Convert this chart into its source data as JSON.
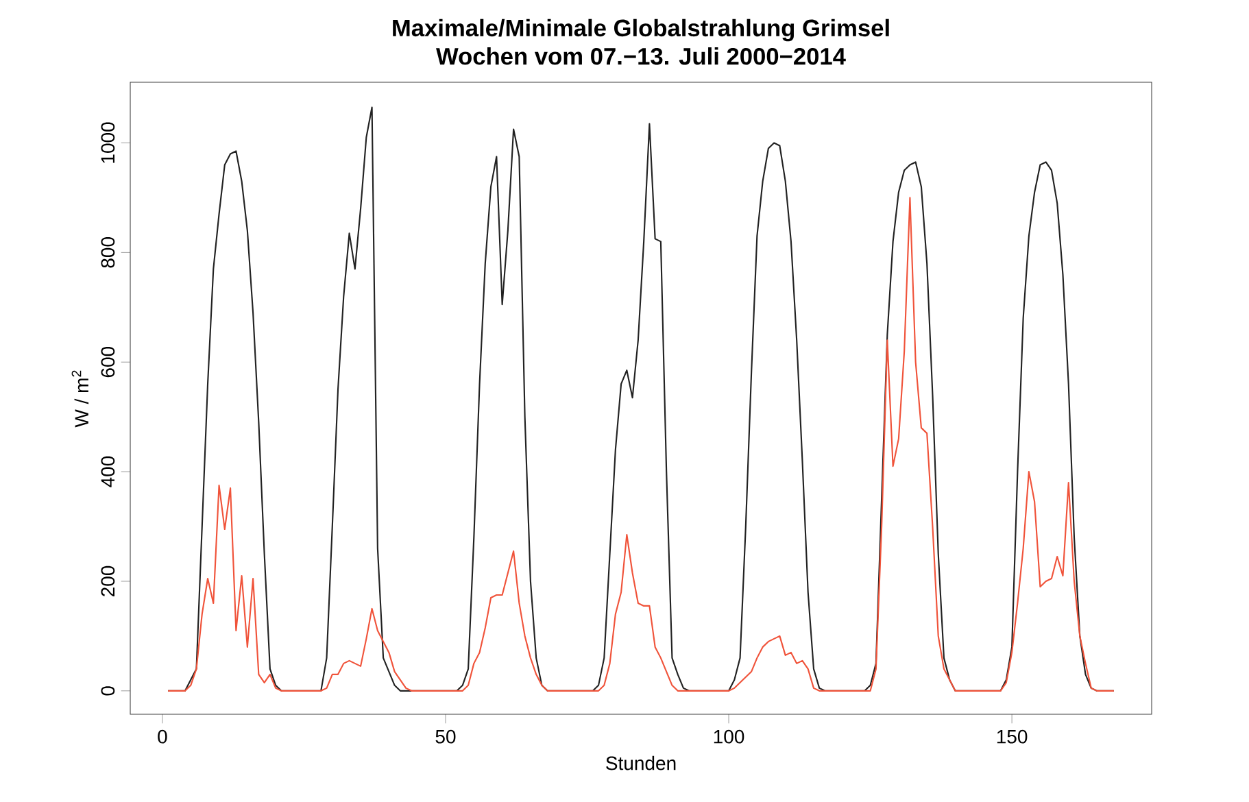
{
  "chart_data": {
    "type": "line",
    "title": "Maximale/Minimale Globalstrahlung Grimsel",
    "subtitle": "Wochen vom 07.−13. Juli 2000−2014",
    "xlabel": "Stunden",
    "ylabel": "W / m$^{2}$",
    "xlim": [
      -5.68,
      174.68
    ],
    "ylim": [
      -42.7,
      1110.7
    ],
    "xticks": [
      0,
      50,
      100,
      150
    ],
    "yticks": [
      0,
      200,
      400,
      600,
      800,
      1000
    ],
    "grid": false,
    "marker": "none",
    "line_style": "solid",
    "series": [
      {
        "color": "#222222",
        "x": [
          1,
          4,
          5,
          6,
          7,
          8,
          9,
          10,
          11,
          12,
          13,
          14,
          15,
          16,
          17,
          18,
          19,
          20,
          21,
          28,
          29,
          30,
          31,
          32,
          33,
          34,
          35,
          36,
          37,
          38,
          39,
          40,
          41,
          42,
          52,
          53,
          54,
          55,
          56,
          57,
          58,
          59,
          60,
          61,
          62,
          63,
          64,
          65,
          66,
          67,
          68,
          76,
          77,
          78,
          79,
          80,
          81,
          82,
          83,
          84,
          85,
          86,
          87,
          88,
          89,
          90,
          91,
          92,
          93,
          100,
          101,
          102,
          103,
          104,
          105,
          106,
          107,
          108,
          109,
          110,
          111,
          112,
          113,
          114,
          115,
          116,
          117,
          124,
          125,
          126,
          127,
          128,
          129,
          130,
          131,
          132,
          133,
          134,
          135,
          136,
          137,
          138,
          139,
          140,
          148,
          149,
          150,
          151,
          152,
          153,
          154,
          155,
          156,
          157,
          158,
          159,
          160,
          161,
          162,
          163,
          164,
          165,
          168
        ],
        "values": [
          0,
          0,
          20,
          40,
          300,
          560,
          770,
          870,
          960,
          980,
          985,
          930,
          840,
          690,
          490,
          250,
          40,
          10,
          0,
          0,
          60,
          300,
          550,
          720,
          835,
          770,
          880,
          1010,
          1065,
          260,
          60,
          35,
          10,
          0,
          0,
          10,
          40,
          280,
          560,
          780,
          920,
          975,
          705,
          840,
          1025,
          975,
          500,
          200,
          60,
          10,
          0,
          0,
          10,
          60,
          250,
          440,
          560,
          585,
          535,
          640,
          820,
          1035,
          825,
          820,
          400,
          60,
          30,
          5,
          0,
          0,
          20,
          60,
          300,
          580,
          830,
          930,
          990,
          1000,
          995,
          930,
          820,
          640,
          420,
          180,
          40,
          5,
          0,
          0,
          10,
          50,
          350,
          650,
          820,
          910,
          950,
          960,
          965,
          920,
          780,
          540,
          250,
          60,
          20,
          0,
          0,
          20,
          80,
          400,
          680,
          830,
          910,
          960,
          965,
          950,
          890,
          760,
          560,
          280,
          100,
          30,
          5,
          0,
          0
        ]
      },
      {
        "color": "#f0533a",
        "x": [
          1,
          4,
          5,
          6,
          7,
          8,
          9,
          10,
          11,
          12,
          13,
          14,
          15,
          16,
          17,
          18,
          19,
          20,
          21,
          28,
          29,
          30,
          31,
          32,
          33,
          34,
          35,
          36,
          37,
          38,
          39,
          40,
          41,
          42,
          43,
          44,
          53,
          54,
          55,
          56,
          57,
          58,
          59,
          60,
          61,
          62,
          63,
          64,
          65,
          66,
          67,
          68,
          77,
          78,
          79,
          80,
          81,
          82,
          83,
          84,
          85,
          86,
          87,
          88,
          89,
          90,
          91,
          100,
          101,
          102,
          103,
          104,
          105,
          106,
          107,
          108,
          109,
          110,
          111,
          112,
          113,
          114,
          115,
          116,
          125,
          126,
          127,
          128,
          129,
          130,
          131,
          132,
          133,
          134,
          135,
          136,
          137,
          138,
          139,
          140,
          148,
          149,
          150,
          151,
          152,
          153,
          154,
          155,
          156,
          157,
          158,
          159,
          160,
          161,
          162,
          163,
          164,
          165,
          168
        ],
        "values": [
          0,
          0,
          10,
          40,
          140,
          205,
          160,
          375,
          295,
          370,
          110,
          210,
          80,
          205,
          30,
          15,
          30,
          5,
          0,
          0,
          5,
          30,
          30,
          50,
          55,
          50,
          45,
          95,
          150,
          110,
          90,
          70,
          35,
          20,
          5,
          0,
          0,
          10,
          50,
          70,
          115,
          170,
          175,
          175,
          215,
          255,
          160,
          100,
          60,
          30,
          10,
          0,
          0,
          10,
          50,
          140,
          180,
          285,
          215,
          160,
          155,
          155,
          80,
          60,
          35,
          10,
          0,
          0,
          5,
          15,
          25,
          35,
          60,
          80,
          90,
          95,
          100,
          65,
          70,
          50,
          55,
          40,
          5,
          0,
          0,
          40,
          300,
          640,
          410,
          460,
          620,
          900,
          600,
          480,
          470,
          300,
          100,
          40,
          20,
          0,
          0,
          15,
          70,
          160,
          260,
          400,
          345,
          190,
          200,
          205,
          245,
          210,
          380,
          200,
          100,
          50,
          5,
          0,
          0
        ]
      }
    ]
  }
}
